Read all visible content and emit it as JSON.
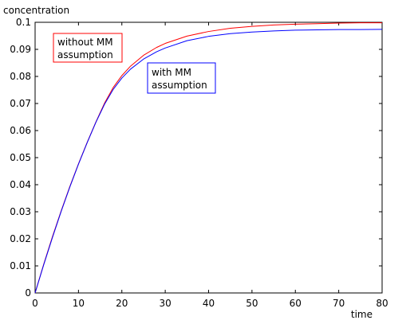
{
  "chart_data": {
    "type": "line",
    "title": "",
    "xlabel": "time",
    "ylabel": "concentration",
    "xlim": [
      0,
      80
    ],
    "ylim": [
      0,
      0.1
    ],
    "x_ticks": [
      0,
      10,
      20,
      30,
      40,
      50,
      60,
      70,
      80
    ],
    "y_ticks": [
      0,
      0.01,
      0.02,
      0.03,
      0.04,
      0.05,
      0.06,
      0.07,
      0.08,
      0.09,
      0.1
    ],
    "x_tick_labels": [
      "0",
      "10",
      "20",
      "30",
      "40",
      "50",
      "60",
      "70",
      "80"
    ],
    "y_tick_labels": [
      "0",
      "0.01",
      "0.02",
      "0.03",
      "0.04",
      "0.05",
      "0.06",
      "0.07",
      "0.08",
      "0.09",
      "0.1"
    ],
    "grid": false,
    "series": [
      {
        "color": "#ff0000",
        "x": [
          0,
          2,
          4,
          6,
          8,
          10,
          12,
          14,
          16,
          18,
          20,
          22,
          25,
          28,
          30,
          35,
          40,
          45,
          50,
          55,
          60,
          65,
          70,
          75,
          80
        ],
        "y": [
          0,
          0.0107,
          0.0208,
          0.0303,
          0.0393,
          0.0477,
          0.0556,
          0.0631,
          0.0701,
          0.0759,
          0.0803,
          0.0838,
          0.0878,
          0.0907,
          0.0922,
          0.0949,
          0.0966,
          0.0978,
          0.0985,
          0.099,
          0.0993,
          0.0995,
          0.0997,
          0.0998,
          0.0998
        ]
      },
      {
        "color": "#0000ff",
        "x": [
          0,
          2,
          4,
          6,
          8,
          10,
          12,
          14,
          16,
          18,
          20,
          22,
          25,
          28,
          30,
          35,
          40,
          45,
          50,
          55,
          60,
          65,
          70,
          75,
          80
        ],
        "y": [
          0,
          0.0105,
          0.0205,
          0.0301,
          0.0391,
          0.0476,
          0.0555,
          0.063,
          0.0697,
          0.0752,
          0.0794,
          0.0827,
          0.0864,
          0.0891,
          0.0905,
          0.0932,
          0.0948,
          0.0958,
          0.0964,
          0.0968,
          0.0971,
          0.0972,
          0.0973,
          0.0973,
          0.0974
        ]
      }
    ],
    "annotations": [
      {
        "text_lines": [
          "without MM",
          "assumption"
        ],
        "color": "#ff0000"
      },
      {
        "text_lines": [
          "with MM",
          "assumption"
        ],
        "color": "#0000ff"
      }
    ]
  }
}
